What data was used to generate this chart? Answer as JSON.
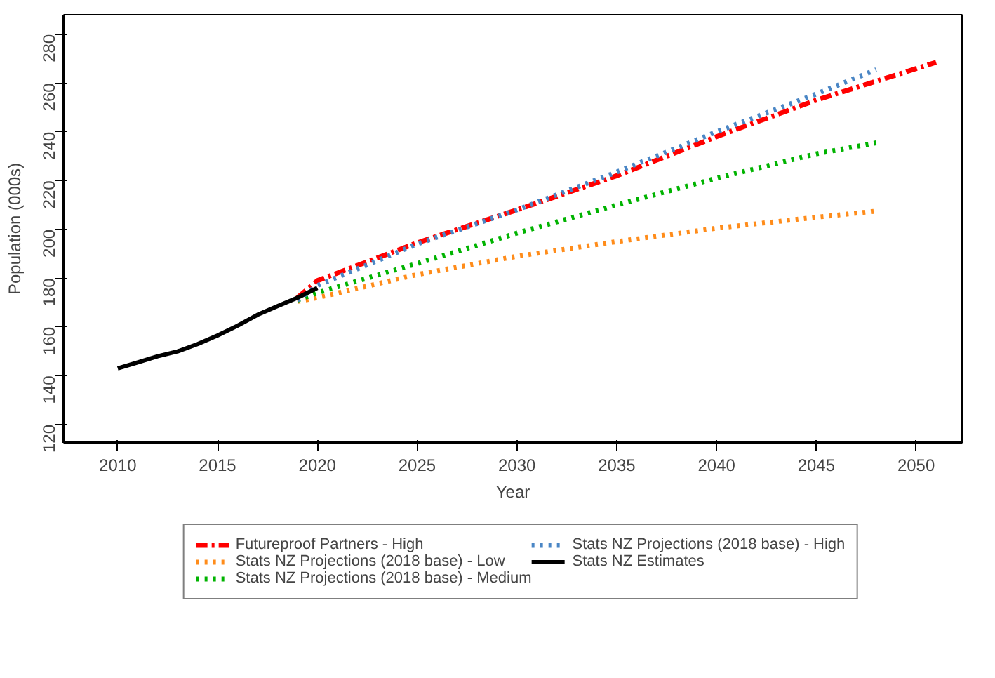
{
  "chart_data": {
    "type": "line",
    "xlabel": "Year",
    "ylabel": "Population (000s)",
    "xlim": [
      2007.3,
      2052.3
    ],
    "ylim": [
      112.5,
      288
    ],
    "xticks": [
      2010,
      2015,
      2020,
      2025,
      2030,
      2035,
      2040,
      2045,
      2050
    ],
    "yticks": [
      120,
      140,
      160,
      180,
      200,
      220,
      240,
      260,
      280
    ],
    "legend": "bottom",
    "grid": false,
    "marker": "none",
    "series": [
      {
        "name": "Futureproof Partners - High",
        "color": "#ff0000",
        "line_style": "dashed",
        "x": [
          2019,
          2020,
          2025,
          2030,
          2035,
          2040,
          2045,
          2051
        ],
        "values": [
          172,
          179,
          194.5,
          208,
          222,
          238,
          253,
          268.5
        ]
      },
      {
        "name": "Stats NZ Projections (2018 base) - Low",
        "color": "#ff8c1a",
        "line_style": "dotted",
        "x": [
          2019,
          2020,
          2025,
          2030,
          2035,
          2040,
          2045,
          2048
        ],
        "values": [
          170.5,
          172,
          181.5,
          189,
          195,
          200.5,
          205,
          207.5
        ]
      },
      {
        "name": "Stats NZ Projections (2018 base) - Medium",
        "color": "#00b300",
        "line_style": "dotted",
        "x": [
          2019,
          2020,
          2025,
          2030,
          2035,
          2040,
          2045,
          2048
        ],
        "values": [
          171,
          174,
          186,
          198.5,
          210,
          221,
          231,
          235.5
        ]
      },
      {
        "name": "Stats NZ Projections (2018 base) - High",
        "color": "#4a86c5",
        "line_style": "dotted",
        "x": [
          2019,
          2020,
          2025,
          2030,
          2035,
          2040,
          2045,
          2048
        ],
        "values": [
          171,
          177,
          194,
          208,
          223.5,
          240,
          255.5,
          265.5
        ]
      },
      {
        "name": "Stats NZ Estimates",
        "color": "#000000",
        "line_style": "solid",
        "x": [
          2010,
          2011,
          2012,
          2013,
          2014,
          2015,
          2016,
          2017,
          2018,
          2019,
          2020
        ],
        "values": [
          143,
          145.5,
          148,
          150,
          153,
          156.5,
          160.5,
          165,
          168.5,
          172,
          176
        ]
      }
    ]
  }
}
